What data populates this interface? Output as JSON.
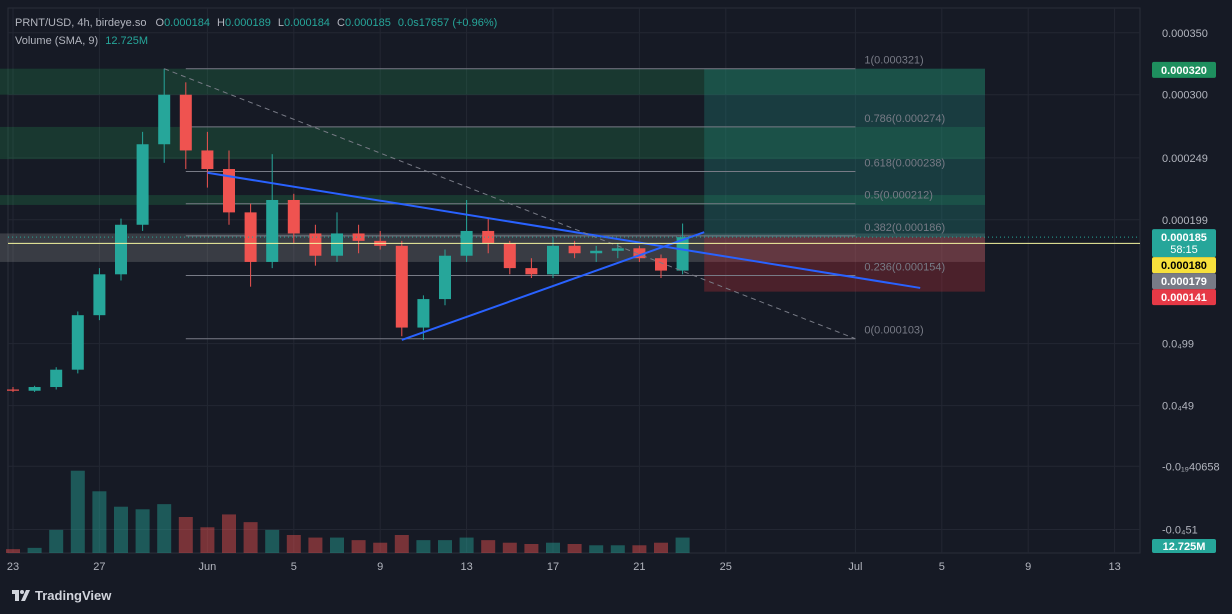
{
  "legend": {
    "symbol": "PRNT/USD, 4h, birdeye.so",
    "o_label": "O",
    "o_value": "0.000184",
    "h_label": "H",
    "h_value": "0.000189",
    "l_label": "L",
    "l_value": "0.000184",
    "c_label": "C",
    "c_value": "0.000185",
    "change": "0.0s17657 (+0.96%)",
    "volume_label": "Volume (SMA, 9)",
    "volume_value": "12.725M"
  },
  "branding": {
    "name": "TradingView"
  },
  "colors": {
    "background": "#161a25",
    "grid": "#232733",
    "up": "#26a69a",
    "down": "#ef5350",
    "trendline": "#2962ff",
    "fib_line": "#787b86",
    "current_price": "#f5f5a0",
    "green_zone": "#1b5e3a",
    "red_zone": "#6b2630",
    "teal_zone": "#1a4d48"
  },
  "chart_data": {
    "type": "candlestick",
    "x_axis": {
      "type": "date",
      "tick_labels": [
        "23",
        "27",
        "Jun",
        "5",
        "9",
        "13",
        "17",
        "21",
        "25",
        "Jul",
        "5",
        "9",
        "13"
      ],
      "tick_dates": [
        "05-23",
        "05-27",
        "06-01",
        "06-05",
        "06-09",
        "06-13",
        "06-17",
        "06-21",
        "06-25",
        "07-01",
        "07-05",
        "07-09",
        "07-13"
      ]
    },
    "y_axis": {
      "tick_labels": [
        "0.000350",
        "0.000300",
        "0.000249",
        "0.000199",
        "0.0₄99",
        "0.0₄49",
        "-0.0₁₉40658",
        "-0.0₄51"
      ],
      "tick_values": [
        0.00035,
        0.0003,
        0.000249,
        0.000199,
        9.9e-05,
        4.9e-05,
        0,
        -5.1e-05
      ],
      "range": [
        -7e-05,
        0.00037
      ]
    },
    "price_badges": [
      {
        "label": "0.000320",
        "value": 0.00032,
        "color": "#1e8f5e"
      },
      {
        "label": "0.000185",
        "sublabel": "58:15",
        "value": 0.000185,
        "color": "#26a69a"
      },
      {
        "label": "0.000180",
        "value": 0.00018,
        "color": "#f7e03c",
        "text_color": "#000000"
      },
      {
        "label": "0.000179",
        "value": 0.000179,
        "color": "#787b86"
      },
      {
        "label": "0.000141",
        "value": 0.000141,
        "color": "#e63946"
      }
    ],
    "volume_badge": "12.725M",
    "candles_ohlc_by_date": [
      [
        "05-22",
        6.2e-05,
        6.4e-05,
        6.1e-05,
        6.3e-05
      ],
      [
        "05-23",
        6.2e-05,
        6.4e-05,
        6e-05,
        6.1e-05
      ],
      [
        "05-24",
        6.1e-05,
        6.5e-05,
        6e-05,
        6.4e-05
      ],
      [
        "05-25",
        6.4e-05,
        8e-05,
        6.2e-05,
        7.8e-05
      ],
      [
        "05-26",
        7.8e-05,
        0.000125,
        7.5e-05,
        0.000122
      ],
      [
        "05-27",
        0.000122,
        0.00016,
        0.000118,
        0.000155
      ],
      [
        "05-28",
        0.000155,
        0.0002,
        0.00015,
        0.000195
      ],
      [
        "05-29",
        0.000195,
        0.00027,
        0.00019,
        0.00026
      ],
      [
        "05-30",
        0.00026,
        0.000321,
        0.000245,
        0.0003
      ],
      [
        "05-31",
        0.0003,
        0.00031,
        0.00024,
        0.000255
      ],
      [
        "06-01",
        0.000255,
        0.00027,
        0.000225,
        0.00024
      ],
      [
        "06-02",
        0.00024,
        0.000255,
        0.000195,
        0.000205
      ],
      [
        "06-03",
        0.000205,
        0.000212,
        0.000145,
        0.000165
      ],
      [
        "06-04",
        0.000165,
        0.000252,
        0.00016,
        0.000215
      ],
      [
        "06-05",
        0.000215,
        0.00022,
        0.00018,
        0.000188
      ],
      [
        "06-06",
        0.000188,
        0.000195,
        0.000162,
        0.00017
      ],
      [
        "06-07",
        0.00017,
        0.000205,
        0.000165,
        0.000188
      ],
      [
        "06-08",
        0.000188,
        0.000195,
        0.000172,
        0.000182
      ],
      [
        "06-09",
        0.000182,
        0.00019,
        0.000175,
        0.000178
      ],
      [
        "06-10",
        0.000178,
        0.000182,
        0.000105,
        0.000112
      ],
      [
        "06-11",
        0.000112,
        0.000138,
        0.000102,
        0.000135
      ],
      [
        "06-12",
        0.000135,
        0.000175,
        0.00013,
        0.00017
      ],
      [
        "06-13",
        0.00017,
        0.000215,
        0.000165,
        0.00019
      ],
      [
        "06-14",
        0.00019,
        0.0002,
        0.000172,
        0.00018
      ],
      [
        "06-15",
        0.00018,
        0.000182,
        0.000155,
        0.00016
      ],
      [
        "06-16",
        0.00016,
        0.000168,
        0.000152,
        0.000155
      ],
      [
        "06-17",
        0.000155,
        0.000185,
        0.000152,
        0.000178
      ],
      [
        "06-18",
        0.000178,
        0.000182,
        0.000168,
        0.000172
      ],
      [
        "06-19",
        0.000172,
        0.000178,
        0.000165,
        0.000174
      ],
      [
        "06-20",
        0.000174,
        0.00018,
        0.000168,
        0.000176
      ],
      [
        "06-21",
        0.000176,
        0.000178,
        0.000165,
        0.000168
      ],
      [
        "06-22",
        0.000168,
        0.000171,
        0.000152,
        0.000158
      ],
      [
        "06-23",
        0.000158,
        0.000196,
        0.000155,
        0.000185
      ]
    ],
    "volume_by_date": [
      [
        "05-22",
        0.2
      ],
      [
        "05-23",
        0.15
      ],
      [
        "05-24",
        0.2
      ],
      [
        "05-25",
        0.9
      ],
      [
        "05-26",
        3.2
      ],
      [
        "05-27",
        2.4
      ],
      [
        "05-28",
        1.8
      ],
      [
        "05-29",
        1.7
      ],
      [
        "05-30",
        1.9
      ],
      [
        "05-31",
        1.4
      ],
      [
        "06-01",
        1.0
      ],
      [
        "06-02",
        1.5
      ],
      [
        "06-03",
        1.2
      ],
      [
        "06-04",
        0.9
      ],
      [
        "06-05",
        0.7
      ],
      [
        "06-06",
        0.6
      ],
      [
        "06-07",
        0.6
      ],
      [
        "06-08",
        0.5
      ],
      [
        "06-09",
        0.4
      ],
      [
        "06-10",
        0.7
      ],
      [
        "06-11",
        0.5
      ],
      [
        "06-12",
        0.5
      ],
      [
        "06-13",
        0.6
      ],
      [
        "06-14",
        0.5
      ],
      [
        "06-15",
        0.4
      ],
      [
        "06-16",
        0.35
      ],
      [
        "06-17",
        0.4
      ],
      [
        "06-18",
        0.35
      ],
      [
        "06-19",
        0.3
      ],
      [
        "06-20",
        0.3
      ],
      [
        "06-21",
        0.3
      ],
      [
        "06-22",
        0.4
      ],
      [
        "06-23",
        0.6
      ]
    ],
    "trendlines": [
      {
        "name": "descending-resistance",
        "from": [
          "06-01",
          0.000237
        ],
        "to": [
          "07-04",
          0.000144
        ]
      },
      {
        "name": "ascending-support",
        "from": [
          "06-10",
          0.000102
        ],
        "to": [
          "06-24",
          0.000189
        ]
      },
      {
        "name": "fib-base-diagonal",
        "from": [
          "05-30",
          0.000321
        ],
        "to": [
          "07-01",
          0.000103
        ],
        "dashed": true
      }
    ],
    "fib_levels": [
      {
        "ratio": "1(0.000321)",
        "value": 0.000321
      },
      {
        "ratio": "0.786(0.000274)",
        "value": 0.000274
      },
      {
        "ratio": "0.618(0.000238)",
        "value": 0.000238
      },
      {
        "ratio": "0.5(0.000212)",
        "value": 0.000212
      },
      {
        "ratio": "0.382(0.000186)",
        "value": 0.000186
      },
      {
        "ratio": "0.236(0.000154)",
        "value": 0.000154
      },
      {
        "ratio": "0(0.000103)",
        "value": 0.000103
      }
    ],
    "fib_start_date": "05-31",
    "fib_end_date": "07-01",
    "zones": [
      {
        "kind": "green",
        "from": "05-22",
        "to": "07-07",
        "y_from": 0.0003,
        "y_to": 0.000321
      },
      {
        "kind": "green",
        "from": "05-22",
        "to": "07-07",
        "y_from": 0.000248,
        "y_to": 0.000274
      },
      {
        "kind": "green",
        "from": "05-22",
        "to": "07-07",
        "y_from": 0.000211,
        "y_to": 0.000219
      },
      {
        "kind": "grey",
        "from": "05-22",
        "to": "07-07",
        "y_from": 0.000165,
        "y_to": 0.000188
      },
      {
        "kind": "teal",
        "from": "06-24",
        "to": "07-07",
        "y_from": 0.000185,
        "y_to": 0.000321
      },
      {
        "kind": "red",
        "from": "06-24",
        "to": "07-07",
        "y_from": 0.000141,
        "y_to": 0.000185
      }
    ],
    "current_price_line": 0.00018
  }
}
